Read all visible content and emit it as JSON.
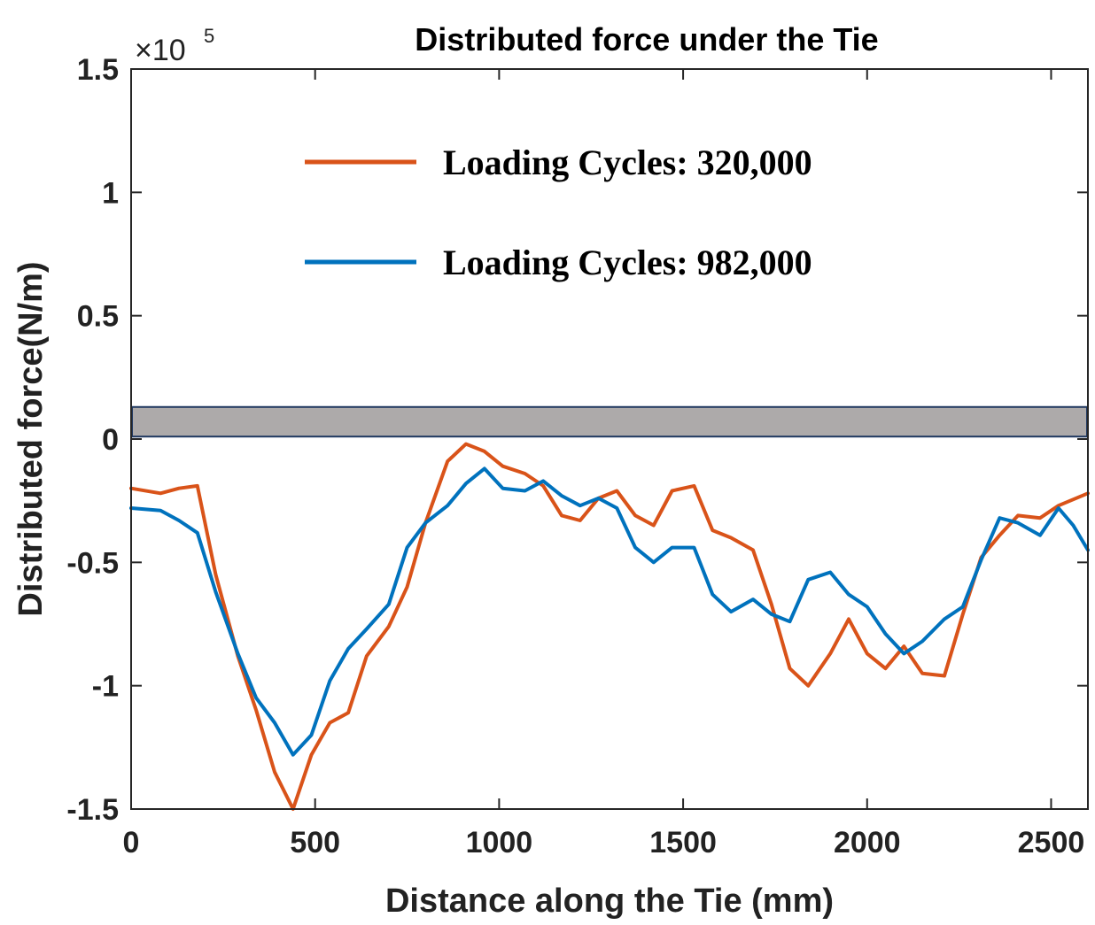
{
  "chart_data": {
    "type": "line",
    "title": "Distributed force under the Tie",
    "xlabel": "Distance along the Tie (mm)",
    "ylabel": "Distributed force(N/m)",
    "y_multiplier_label": "×10",
    "y_multiplier_exponent": "5",
    "xlim": [
      0,
      2600
    ],
    "ylim": [
      -1.5,
      1.5
    ],
    "x_ticks": [
      0,
      500,
      1000,
      1500,
      2000,
      2500
    ],
    "x_tick_labels": [
      "0",
      "500",
      "1000",
      "1500",
      "2000",
      "2500"
    ],
    "y_ticks": [
      -1.5,
      -1,
      -0.5,
      0,
      0.5,
      1,
      1.5
    ],
    "y_tick_labels": [
      "-1.5",
      "-1",
      "-0.5",
      "0",
      "0.5",
      "1",
      "1.5"
    ],
    "legend_position": "upper-center",
    "shaded_band": {
      "ymin": 0.01,
      "ymax": 0.13,
      "color": "#adaaaa",
      "edge_color": "#1f3860"
    },
    "series": [
      {
        "name": "Loading Cycles: 320,000",
        "color": "#d95319",
        "x": [
          0,
          80,
          130,
          180,
          230,
          290,
          340,
          390,
          440,
          490,
          540,
          590,
          640,
          700,
          750,
          800,
          860,
          910,
          960,
          1010,
          1070,
          1120,
          1170,
          1220,
          1270,
          1320,
          1370,
          1420,
          1470,
          1530,
          1580,
          1630,
          1690,
          1740,
          1790,
          1840,
          1900,
          1950,
          2000,
          2050,
          2100,
          2150,
          2210,
          2260,
          2310,
          2360,
          2410,
          2470,
          2520,
          2600
        ],
        "y": [
          -0.2,
          -0.22,
          -0.2,
          -0.19,
          -0.55,
          -0.88,
          -1.1,
          -1.35,
          -1.5,
          -1.28,
          -1.15,
          -1.11,
          -0.88,
          -0.76,
          -0.6,
          -0.34,
          -0.09,
          -0.02,
          -0.05,
          -0.11,
          -0.14,
          -0.19,
          -0.31,
          -0.33,
          -0.24,
          -0.21,
          -0.31,
          -0.35,
          -0.21,
          -0.19,
          -0.37,
          -0.4,
          -0.45,
          -0.67,
          -0.93,
          -1.0,
          -0.87,
          -0.73,
          -0.87,
          -0.93,
          -0.84,
          -0.95,
          -0.96,
          -0.71,
          -0.48,
          -0.39,
          -0.31,
          -0.32,
          -0.27,
          -0.22
        ]
      },
      {
        "name": "Loading Cycles: 982,000",
        "color": "#0072bd",
        "x": [
          0,
          80,
          130,
          180,
          230,
          290,
          340,
          390,
          440,
          490,
          540,
          590,
          640,
          700,
          750,
          800,
          860,
          910,
          960,
          1010,
          1070,
          1120,
          1170,
          1220,
          1270,
          1320,
          1370,
          1420,
          1470,
          1530,
          1580,
          1630,
          1690,
          1740,
          1790,
          1840,
          1900,
          1950,
          2000,
          2050,
          2100,
          2150,
          2210,
          2260,
          2310,
          2360,
          2410,
          2470,
          2520,
          2560,
          2600
        ],
        "y": [
          -0.28,
          -0.29,
          -0.33,
          -0.38,
          -0.62,
          -0.87,
          -1.05,
          -1.15,
          -1.28,
          -1.2,
          -0.98,
          -0.85,
          -0.77,
          -0.67,
          -0.44,
          -0.34,
          -0.27,
          -0.18,
          -0.12,
          -0.2,
          -0.21,
          -0.17,
          -0.23,
          -0.27,
          -0.24,
          -0.28,
          -0.44,
          -0.5,
          -0.44,
          -0.44,
          -0.63,
          -0.7,
          -0.65,
          -0.71,
          -0.74,
          -0.57,
          -0.54,
          -0.63,
          -0.68,
          -0.79,
          -0.87,
          -0.82,
          -0.73,
          -0.68,
          -0.49,
          -0.32,
          -0.34,
          -0.39,
          -0.28,
          -0.35,
          -0.45
        ]
      }
    ]
  }
}
